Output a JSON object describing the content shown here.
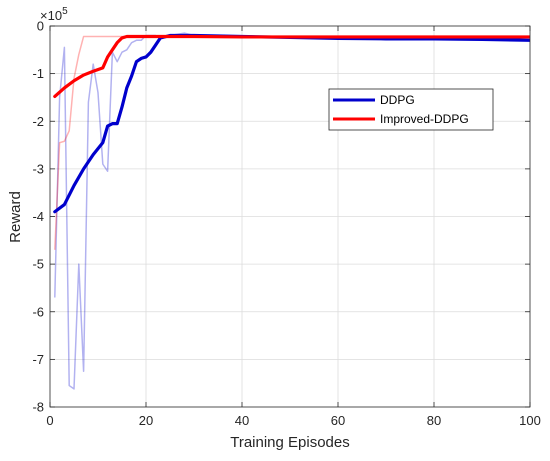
{
  "chart_data": {
    "type": "line",
    "title": "",
    "xlabel": "Training Episodes",
    "ylabel": "Reward",
    "xlim": [
      0,
      100
    ],
    "ylim": [
      -8,
      0
    ],
    "y_scale_exponent_label": "×10",
    "y_scale_exponent": "5",
    "x_ticks": [
      0,
      20,
      40,
      60,
      80,
      100
    ],
    "y_ticks": [
      -8,
      -7,
      -6,
      -5,
      -4,
      -3,
      -2,
      -1,
      0
    ],
    "grid": true,
    "legend_position": "upper-right",
    "series": [
      {
        "name": "DDPG",
        "color": "#0000cc",
        "raw_x": [
          1,
          2,
          3,
          4,
          5,
          6,
          7,
          8,
          9,
          10,
          11,
          12,
          13,
          14,
          15,
          16,
          17,
          18,
          19,
          20,
          21,
          22,
          23,
          25,
          28,
          30,
          35,
          40,
          50,
          60,
          70,
          80,
          90,
          100
        ],
        "raw_y": [
          -5.7,
          -1.5,
          -0.45,
          -7.55,
          -7.62,
          -5.0,
          -7.25,
          -1.6,
          -0.8,
          -1.4,
          -2.9,
          -3.05,
          -0.55,
          -0.75,
          -0.55,
          -0.5,
          -0.35,
          -0.3,
          -0.3,
          -0.2,
          -0.2,
          -0.2,
          -0.25,
          -0.2,
          -0.15,
          -0.2,
          -0.22,
          -0.22,
          -0.25,
          -0.25,
          -0.25,
          -0.25,
          -0.25,
          -0.25
        ],
        "smooth_x": [
          1,
          3,
          5,
          7,
          9,
          11,
          12,
          13,
          14,
          15,
          16,
          17,
          18,
          19,
          20,
          21,
          22,
          23,
          25,
          30,
          40,
          50,
          60,
          70,
          80,
          90,
          100
        ],
        "smooth_y": [
          -3.9,
          -3.75,
          -3.35,
          -3.0,
          -2.7,
          -2.45,
          -2.1,
          -2.05,
          -2.05,
          -1.7,
          -1.3,
          -1.05,
          -0.75,
          -0.68,
          -0.65,
          -0.55,
          -0.4,
          -0.25,
          -0.2,
          -0.2,
          -0.22,
          -0.24,
          -0.26,
          -0.27,
          -0.27,
          -0.28,
          -0.3
        ]
      },
      {
        "name": "Improved-DDPG",
        "color": "#ff0000",
        "raw_x": [
          1,
          2,
          3,
          4,
          5,
          6,
          7,
          8,
          10,
          15,
          20,
          30,
          40,
          50,
          60,
          70,
          80,
          90,
          100
        ],
        "raw_y": [
          -4.7,
          -2.45,
          -2.42,
          -2.2,
          -1.1,
          -0.6,
          -0.22,
          -0.22,
          -0.22,
          -0.22,
          -0.22,
          -0.23,
          -0.23,
          -0.23,
          -0.23,
          -0.23,
          -0.23,
          -0.23,
          -0.23
        ],
        "smooth_x": [
          1,
          3,
          5,
          7,
          9,
          11,
          12,
          13,
          14,
          15,
          16,
          17,
          20,
          25,
          30,
          40,
          50,
          60,
          70,
          80,
          90,
          100
        ],
        "smooth_y": [
          -1.48,
          -1.3,
          -1.15,
          -1.03,
          -0.95,
          -0.88,
          -0.65,
          -0.5,
          -0.35,
          -0.25,
          -0.22,
          -0.22,
          -0.22,
          -0.22,
          -0.22,
          -0.23,
          -0.23,
          -0.23,
          -0.23,
          -0.23,
          -0.23,
          -0.23
        ]
      }
    ]
  }
}
